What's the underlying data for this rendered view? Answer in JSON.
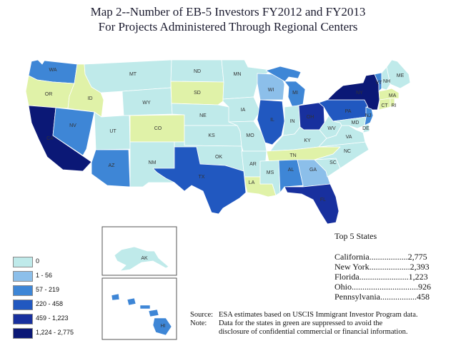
{
  "title": {
    "line1": "Map 2--Number of EB-5 Investors FY2012 and FY2013",
    "line2": "For Projects Administered Through Regional Centers"
  },
  "colors": {
    "c0": "#bfeaea",
    "c1": "#8cbfea",
    "c2": "#3e86d6",
    "c3": "#2158c0",
    "c4": "#18309e",
    "c5": "#0b1876",
    "green": "#e0f2a8"
  },
  "legend": [
    {
      "label": "0",
      "color": "#bfeaea"
    },
    {
      "label": "1 - 56",
      "color": "#8cbfea"
    },
    {
      "label": "57 - 219",
      "color": "#3e86d6"
    },
    {
      "label": "220 - 458",
      "color": "#2158c0"
    },
    {
      "label": "459 - 1,223",
      "color": "#18309e"
    },
    {
      "label": "1,224 - 2,775",
      "color": "#0b1876"
    }
  ],
  "states": {
    "WA": "c2",
    "OR": "green",
    "CA": "c5",
    "NV": "c2",
    "ID": "green",
    "MT": "c0",
    "WY": "c0",
    "UT": "c0",
    "AZ": "c2",
    "CO": "green",
    "NM": "c0",
    "ND": "c0",
    "SD": "green",
    "NE": "c0",
    "KS": "c0",
    "OK": "c0",
    "TX": "c3",
    "MN": "c0",
    "IA": "c0",
    "MO": "c0",
    "AR": "c0",
    "LA": "green",
    "WI": "c1",
    "IL": "c3",
    "MI": "c2",
    "IN": "c0",
    "OH": "c4",
    "KY": "c0",
    "TN": "green",
    "MS": "c0",
    "AL": "c2",
    "GA": "c1",
    "FL": "c4",
    "SC": "c0",
    "NC": "c0",
    "VA": "c0",
    "WV": "c0",
    "PA": "c3",
    "NY": "c5",
    "VT": "c2",
    "NH": "c0",
    "ME": "c0",
    "MA": "green",
    "CT": "green",
    "RI": "green",
    "NJ": "c2",
    "MD": "c0",
    "DE": "c0",
    "AK": "c0",
    "HI": "c2"
  },
  "state_labels": {
    "WA": "WA",
    "OR": "OR",
    "CA": "CA",
    "NV": "NV",
    "ID": "ID",
    "MT": "MT",
    "WY": "WY",
    "UT": "UT",
    "AZ": "AZ",
    "CO": "CO",
    "NM": "NM",
    "ND": "ND",
    "SD": "SD",
    "NE": "NE",
    "KS": "KS",
    "OK": "OK",
    "TX": "TX",
    "MN": "MN",
    "IA": "IA",
    "MO": "MO",
    "AR": "AR",
    "LA": "LA",
    "WI": "WI",
    "IL": "IL",
    "MI": "MI",
    "IN": "IN",
    "OH": "OH",
    "KY": "KY",
    "TN": "TN",
    "MS": "MS",
    "AL": "AL",
    "GA": "GA",
    "FL": "FL",
    "SC": "SC",
    "NC": "NC",
    "VA": "VA",
    "WV": "WV",
    "PA": "PA",
    "NY": "NY",
    "VT": "VT",
    "NH": "NH",
    "ME": "ME",
    "MA": "MA",
    "CT": "CT",
    "RI": "RI",
    "NJ": "NJ",
    "MD": "MD",
    "DE": "DE",
    "AK": "AK",
    "HI": "HI"
  },
  "top5": {
    "heading": "Top 5 States",
    "rows": [
      "California..................2,775",
      "New York...................2,393",
      "Florida.......................1,223",
      "Ohio...............................926",
      "Pennsylvania.................458"
    ]
  },
  "source": {
    "src_key": "Source:",
    "src_text": "ESA estimates based on USCIS Immigrant Investor Program  data.",
    "note_key": "Note:",
    "note_line1": "Data for the states in green are suppressed to avoid the",
    "note_line2": "disclosure of confidential commercial or financial information."
  }
}
